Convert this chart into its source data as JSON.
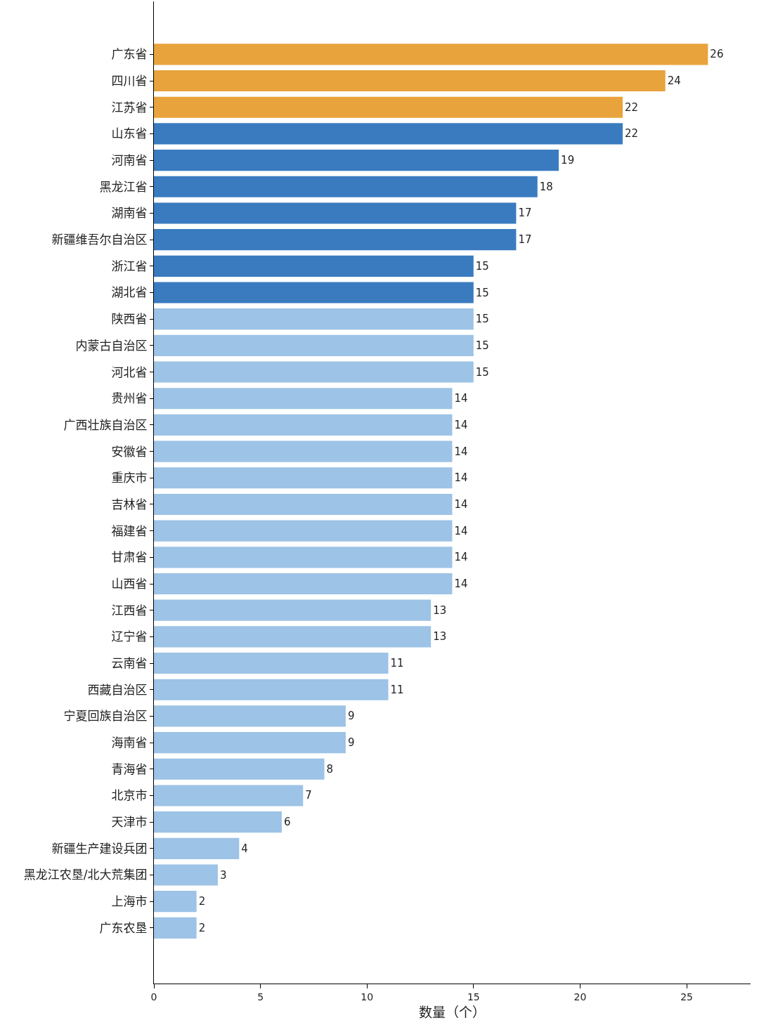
{
  "chart_data": {
    "type": "bar",
    "orientation": "horizontal",
    "xlabel": "数量（个）",
    "categories": [
      "广东省",
      "四川省",
      "江苏省",
      "山东省",
      "河南省",
      "黑龙江省",
      "湖南省",
      "新疆维吾尔自治区",
      "浙江省",
      "湖北省",
      "陕西省",
      "内蒙古自治区",
      "河北省",
      "贵州省",
      "广西壮族自治区",
      "安徽省",
      "重庆市",
      "吉林省",
      "福建省",
      "甘肃省",
      "山西省",
      "江西省",
      "辽宁省",
      "云南省",
      "西藏自治区",
      "宁夏回族自治区",
      "海南省",
      "青海省",
      "北京市",
      "天津市",
      "新疆生产建设兵团",
      "黑龙江农垦/北大荒集团",
      "上海市",
      "广东农垦"
    ],
    "values": [
      26,
      24,
      22,
      22,
      19,
      18,
      17,
      17,
      15,
      15,
      15,
      15,
      15,
      14,
      14,
      14,
      14,
      14,
      14,
      14,
      14,
      13,
      13,
      11,
      11,
      9,
      9,
      8,
      7,
      6,
      4,
      3,
      2,
      2
    ],
    "colors": [
      "#e8a33c",
      "#e8a33c",
      "#e8a33c",
      "#3a7bc0",
      "#3a7bc0",
      "#3a7bc0",
      "#3a7bc0",
      "#3a7bc0",
      "#3a7bc0",
      "#3a7bc0",
      "#9dc3e6",
      "#9dc3e6",
      "#9dc3e6",
      "#9dc3e6",
      "#9dc3e6",
      "#9dc3e6",
      "#9dc3e6",
      "#9dc3e6",
      "#9dc3e6",
      "#9dc3e6",
      "#9dc3e6",
      "#9dc3e6",
      "#9dc3e6",
      "#9dc3e6",
      "#9dc3e6",
      "#9dc3e6",
      "#9dc3e6",
      "#9dc3e6",
      "#9dc3e6",
      "#9dc3e6",
      "#9dc3e6",
      "#9dc3e6",
      "#9dc3e6",
      "#9dc3e6"
    ],
    "xlim": [
      0,
      28
    ],
    "xticks": [
      0,
      5,
      10,
      15,
      20,
      25
    ],
    "data_labels": true
  }
}
